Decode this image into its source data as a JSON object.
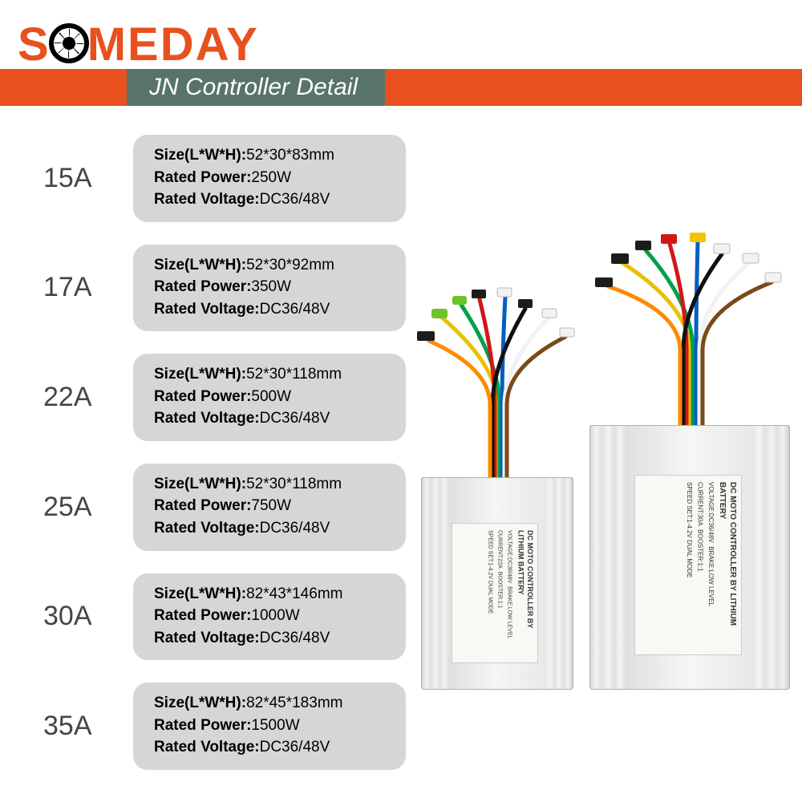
{
  "brand": {
    "text_before_o": "S",
    "text_after_o": "MEDAY",
    "color": "#e8501e"
  },
  "title": {
    "text": "JN Controller Detail",
    "bar_color": "#e8501e",
    "tab_color": "#58746a",
    "text_color": "#ffffff",
    "fontsize": 30
  },
  "spec_labels": {
    "size": "Size(L*W*H):",
    "power": "Rated Power:",
    "voltage": "Rated Voltage:"
  },
  "pill": {
    "bg": "#d6d6d6",
    "radius": 18,
    "label_fontsize": 19
  },
  "amp": {
    "fontsize": 34,
    "color": "#454545"
  },
  "rows": [
    {
      "amp": "15A",
      "size": "52*30*83mm",
      "power": "250W",
      "voltage": "DC36/48V"
    },
    {
      "amp": "17A",
      "size": "52*30*92mm",
      "power": "350W",
      "voltage": "DC36/48V"
    },
    {
      "amp": "22A",
      "size": "52*30*118mm",
      "power": "500W",
      "voltage": "DC36/48V"
    },
    {
      "amp": "25A",
      "size": "52*30*118mm",
      "power": "750W",
      "voltage": "DC36/48V"
    },
    {
      "amp": "30A",
      "size": "82*43*146mm",
      "power": "1000W",
      "voltage": "DC36/48V"
    },
    {
      "amp": "35A",
      "size": "82*45*183mm",
      "power": "1500W",
      "voltage": "DC36/48V"
    }
  ],
  "wire_colors": [
    "#e8c100",
    "#00a04a",
    "#d01818",
    "#0060c0",
    "#101010",
    "#ffffff",
    "#ff8a00",
    "#7a4a1a"
  ],
  "connector_colors": {
    "green": "#6ec22a",
    "black": "#1c1c1c",
    "white": "#f2f2f2",
    "yellow": "#f4c400",
    "red": "#d01818"
  },
  "product_label": {
    "title": "DC MOTO CONTROLLER BY LITHIUM BATTERY",
    "line1": "VOLTAGE:DC36/48V",
    "line1b": "BRAKE:LOW LEVEL",
    "line2_small": "CURRENT:22A",
    "line2_large": "CURRENT:30A",
    "line2b": "BOOSTER:1:1",
    "line3": "SPEED SET:1-4.2V",
    "line3b": "DUAL MODE"
  }
}
